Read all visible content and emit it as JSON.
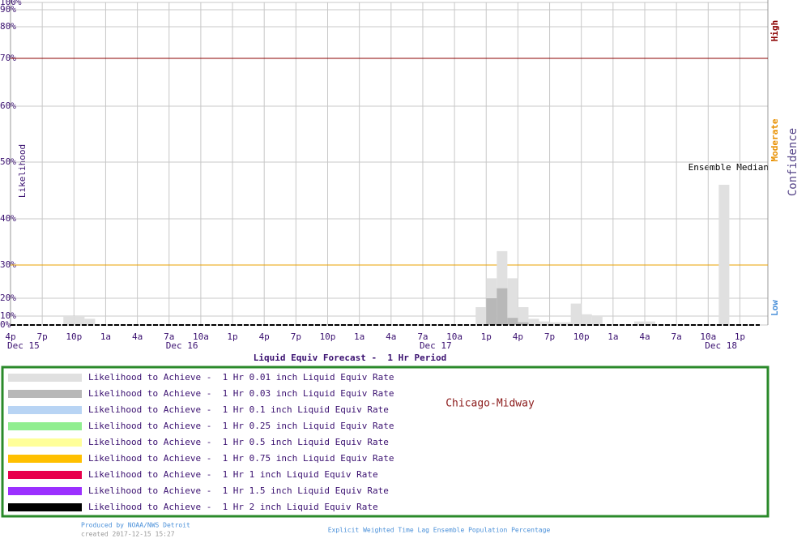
{
  "chart_data": {
    "type": "bar",
    "title": "Liquid Equiv Forecast -  1 Hr Period",
    "y_label": "Likelihood",
    "location": "Chicago-Midway",
    "annotation": "Ensemble Median",
    "confidence_axis": {
      "title": "Confidence",
      "levels": [
        "Low",
        "Moderate",
        "High"
      ]
    },
    "threshold_lines": [
      {
        "value": 30,
        "color": "#e8a000"
      },
      {
        "value": 70,
        "color": "#8b0000"
      }
    ],
    "categories": [
      "4p",
      null,
      null,
      "7p",
      null,
      null,
      "10p",
      null,
      null,
      "1a",
      null,
      null,
      "4a",
      null,
      null,
      "7a",
      null,
      null,
      "10a",
      null,
      null,
      "1p",
      null,
      null,
      "4p",
      null,
      null,
      "7p",
      null,
      null,
      "10p",
      null,
      null,
      "1a",
      null,
      null,
      "4a",
      null,
      null,
      "7a",
      null,
      null,
      "10a",
      null,
      null,
      "1p",
      null,
      null,
      "4p",
      null,
      null,
      "7p",
      null,
      null,
      "10p",
      null,
      null,
      "1a",
      null,
      null,
      "4a",
      null,
      null,
      "7a",
      null,
      null,
      "10a",
      null,
      null,
      "1p",
      null,
      null
    ],
    "date_labels": [
      "Dec 15",
      null,
      null,
      null,
      null,
      null,
      null,
      null,
      null,
      null,
      null,
      null,
      null,
      null,
      null,
      "Dec 16",
      null,
      null,
      null,
      null,
      null,
      null,
      null,
      null,
      null,
      null,
      null,
      null,
      null,
      null,
      null,
      null,
      null,
      null,
      null,
      null,
      null,
      null,
      null,
      "Dec 17",
      null,
      null,
      null,
      null,
      null,
      null,
      null,
      null,
      null,
      null,
      null,
      null,
      null,
      null,
      null,
      null,
      null,
      null,
      null,
      null,
      null,
      null,
      null,
      null,
      null,
      null,
      "Dec 18",
      null,
      null,
      null,
      null,
      null
    ],
    "ylim": [
      0,
      100
    ],
    "yticks": [
      {
        "value": 0,
        "label": "0%"
      },
      {
        "value": 10,
        "label": "10%"
      },
      {
        "value": 20,
        "label": "20%"
      },
      {
        "value": 30,
        "label": "30%"
      },
      {
        "value": 40,
        "label": "40%"
      },
      {
        "value": 50,
        "label": "50%"
      },
      {
        "value": 60,
        "label": "60%"
      },
      {
        "value": 70,
        "label": "70%"
      },
      {
        "value": 80,
        "label": "80%"
      },
      {
        "value": 90,
        "label": "90%"
      },
      {
        "value": 100,
        "label": "100%"
      }
    ],
    "grid": true,
    "series": [
      {
        "name": "Likelihood to Achieve -  1 Hr 0.01 inch Liquid Equiv Rate",
        "color": "#e0e0e0",
        "values": [
          0,
          0,
          0,
          0,
          0,
          10,
          10,
          7,
          0,
          0,
          0,
          0,
          0,
          0,
          0,
          0,
          0,
          0,
          0,
          0,
          0,
          0,
          0,
          0,
          0,
          0,
          0,
          0,
          0,
          0,
          0,
          0,
          0,
          0,
          0,
          0,
          0,
          0,
          0,
          0,
          0,
          0,
          0,
          0,
          15,
          26,
          33,
          26,
          15,
          7,
          4,
          3,
          3,
          17,
          11,
          10,
          0,
          0,
          0,
          4,
          4,
          0,
          0,
          0,
          0,
          0,
          0,
          46,
          0,
          0,
          0,
          0
        ]
      },
      {
        "name": "Likelihood to Achieve -  1 Hr 0.03 inch Liquid Equiv Rate",
        "color": "#b8b8b8",
        "values": [
          0,
          0,
          0,
          0,
          0,
          0,
          0,
          0,
          0,
          0,
          0,
          0,
          0,
          0,
          0,
          0,
          0,
          0,
          0,
          0,
          0,
          0,
          0,
          0,
          0,
          0,
          0,
          0,
          0,
          0,
          0,
          0,
          0,
          0,
          0,
          0,
          0,
          0,
          0,
          0,
          0,
          0,
          0,
          0,
          0,
          20,
          23,
          8,
          3,
          0,
          0,
          0,
          0,
          0,
          0,
          0,
          0,
          0,
          0,
          0,
          0,
          0,
          0,
          0,
          0,
          0,
          0,
          0,
          0,
          0,
          0,
          0
        ]
      },
      {
        "name": "Likelihood to Achieve -  1 Hr 0.1 inch Liquid Equiv Rate",
        "color": "#b8d4f4",
        "values": [
          0,
          0,
          0,
          0,
          0,
          0,
          0,
          0,
          0,
          0,
          0,
          0,
          0,
          0,
          0,
          0,
          0,
          0,
          0,
          0,
          0,
          0,
          0,
          0,
          0,
          0,
          0,
          0,
          0,
          0,
          0,
          0,
          0,
          0,
          0,
          0,
          0,
          0,
          0,
          0,
          0,
          0,
          0,
          0,
          0,
          0,
          0,
          0,
          0,
          0,
          0,
          0,
          0,
          0,
          0,
          0,
          0,
          0,
          0,
          0,
          0,
          0,
          0,
          0,
          0,
          0,
          0,
          0,
          0,
          0,
          0,
          0
        ]
      },
      {
        "name": "Likelihood to Achieve -  1 Hr 0.25 inch Liquid Equiv Rate",
        "color": "#90ee90",
        "values": [
          0,
          0,
          0,
          0,
          0,
          0,
          0,
          0,
          0,
          0,
          0,
          0,
          0,
          0,
          0,
          0,
          0,
          0,
          0,
          0,
          0,
          0,
          0,
          0,
          0,
          0,
          0,
          0,
          0,
          0,
          0,
          0,
          0,
          0,
          0,
          0,
          0,
          0,
          0,
          0,
          0,
          0,
          0,
          0,
          0,
          0,
          0,
          0,
          0,
          0,
          0,
          0,
          0,
          0,
          0,
          0,
          0,
          0,
          0,
          0,
          0,
          0,
          0,
          0,
          0,
          0,
          0,
          0,
          0,
          0,
          0,
          0
        ]
      },
      {
        "name": "Likelihood to Achieve -  1 Hr 0.5 inch Liquid Equiv Rate",
        "color": "#ffff99",
        "values": [
          0,
          0,
          0,
          0,
          0,
          0,
          0,
          0,
          0,
          0,
          0,
          0,
          0,
          0,
          0,
          0,
          0,
          0,
          0,
          0,
          0,
          0,
          0,
          0,
          0,
          0,
          0,
          0,
          0,
          0,
          0,
          0,
          0,
          0,
          0,
          0,
          0,
          0,
          0,
          0,
          0,
          0,
          0,
          0,
          0,
          0,
          0,
          0,
          0,
          0,
          0,
          0,
          0,
          0,
          0,
          0,
          0,
          0,
          0,
          0,
          0,
          0,
          0,
          0,
          0,
          0,
          0,
          0,
          0,
          0,
          0,
          0
        ]
      },
      {
        "name": "Likelihood to Achieve -  1 Hr 0.75 inch Liquid Equiv Rate",
        "color": "#ffc000",
        "values": [
          0,
          0,
          0,
          0,
          0,
          0,
          0,
          0,
          0,
          0,
          0,
          0,
          0,
          0,
          0,
          0,
          0,
          0,
          0,
          0,
          0,
          0,
          0,
          0,
          0,
          0,
          0,
          0,
          0,
          0,
          0,
          0,
          0,
          0,
          0,
          0,
          0,
          0,
          0,
          0,
          0,
          0,
          0,
          0,
          0,
          0,
          0,
          0,
          0,
          0,
          0,
          0,
          0,
          0,
          0,
          0,
          0,
          0,
          0,
          0,
          0,
          0,
          0,
          0,
          0,
          0,
          0,
          0,
          0,
          0,
          0,
          0
        ]
      },
      {
        "name": "Likelihood to Achieve -  1 Hr 1 inch Liquid Equiv Rate",
        "color": "#e8004c",
        "values": [
          0,
          0,
          0,
          0,
          0,
          0,
          0,
          0,
          0,
          0,
          0,
          0,
          0,
          0,
          0,
          0,
          0,
          0,
          0,
          0,
          0,
          0,
          0,
          0,
          0,
          0,
          0,
          0,
          0,
          0,
          0,
          0,
          0,
          0,
          0,
          0,
          0,
          0,
          0,
          0,
          0,
          0,
          0,
          0,
          0,
          0,
          0,
          0,
          0,
          0,
          0,
          0,
          0,
          0,
          0,
          0,
          0,
          0,
          0,
          0,
          0,
          0,
          0,
          0,
          0,
          0,
          0,
          0,
          0,
          0,
          0,
          0
        ]
      },
      {
        "name": "Likelihood to Achieve -  1 Hr 1.5 inch Liquid Equiv Rate",
        "color": "#9b30ff",
        "values": [
          0,
          0,
          0,
          0,
          0,
          0,
          0,
          0,
          0,
          0,
          0,
          0,
          0,
          0,
          0,
          0,
          0,
          0,
          0,
          0,
          0,
          0,
          0,
          0,
          0,
          0,
          0,
          0,
          0,
          0,
          0,
          0,
          0,
          0,
          0,
          0,
          0,
          0,
          0,
          0,
          0,
          0,
          0,
          0,
          0,
          0,
          0,
          0,
          0,
          0,
          0,
          0,
          0,
          0,
          0,
          0,
          0,
          0,
          0,
          0,
          0,
          0,
          0,
          0,
          0,
          0,
          0,
          0,
          0,
          0,
          0,
          0
        ]
      },
      {
        "name": "Likelihood to Achieve -  1 Hr 2 inch Liquid Equiv Rate",
        "color": "#000000",
        "values": [
          0,
          0,
          0,
          0,
          0,
          0,
          0,
          0,
          0,
          0,
          0,
          0,
          0,
          0,
          0,
          0,
          0,
          0,
          0,
          0,
          0,
          0,
          0,
          0,
          0,
          0,
          0,
          0,
          0,
          0,
          0,
          0,
          0,
          0,
          0,
          0,
          0,
          0,
          0,
          0,
          0,
          0,
          0,
          0,
          0,
          0,
          0,
          0,
          0,
          0,
          0,
          0,
          0,
          0,
          0,
          0,
          0,
          0,
          0,
          0,
          0,
          0,
          0,
          0,
          0,
          0,
          0,
          0,
          0,
          0,
          0,
          0
        ]
      }
    ],
    "footer": {
      "producer": "Produced by NOAA/NWS Detroit",
      "created": "created 2017-12-15 15:27",
      "method": "Explicit Weighted Time Lag Ensemble Population Percentage"
    }
  }
}
